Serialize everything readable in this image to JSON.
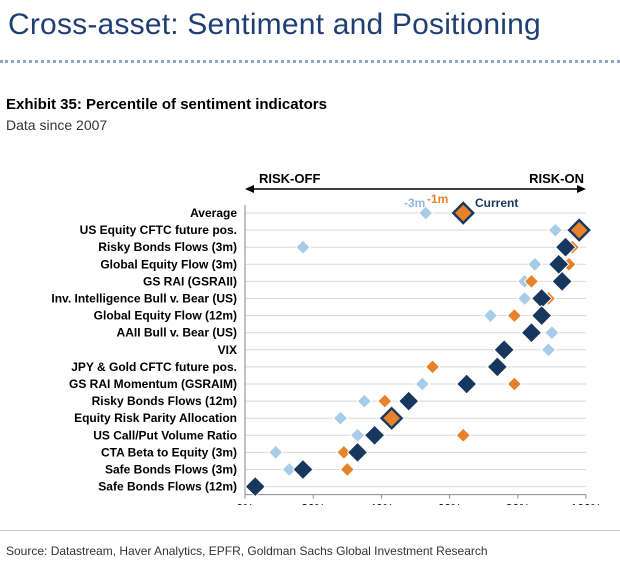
{
  "page": {
    "title": "Cross-asset: Sentiment and Positioning",
    "exhibit_title": "Exhibit 35: Percentile of sentiment indicators",
    "exhibit_subtitle": "Data since 2007",
    "source": "Source: Datastream, Haver Analytics, EPFR, Goldman Sachs Global Investment Research"
  },
  "colors": {
    "title": "#1f3f73",
    "current": "#17375e",
    "one_month": "#e8822a",
    "three_month": "#a8cbe8",
    "three_month_label": "#8fbadf"
  },
  "chart_data": {
    "type": "scatter",
    "xlim": [
      0,
      100
    ],
    "x_ticks": [
      "0%",
      "20%",
      "40%",
      "60%",
      "80%",
      "100%"
    ],
    "risk_off_label": "RISK-OFF",
    "risk_on_label": "RISK-ON",
    "categories": [
      "Average",
      "US Equity CFTC future pos.",
      "Risky Bonds Flows (3m)",
      "Global Equity Flow (3m)",
      "GS RAI (GSRAII)",
      "Inv. Intelligence Bull v. Bear (US)",
      "Global Equity Flow (12m)",
      "AAII Bull v. Bear (US)",
      "VIX",
      "JPY & Gold CFTC future pos.",
      "GS RAI Momentum (GSRAIM)",
      "Risky Bonds Flows (12m)",
      "Equity Risk Parity Allocation",
      "US Call/Put Volume Ratio",
      "CTA Beta to Equity (3m)",
      "Safe Bonds Flows (3m)",
      "Safe Bonds Flows (12m)"
    ],
    "series": [
      {
        "name": "-3m",
        "values": [
          53,
          91,
          17,
          85,
          82,
          82,
          72,
          90,
          89,
          75,
          52,
          35,
          28,
          33,
          9,
          13,
          3
        ]
      },
      {
        "name": "-1m",
        "values": [
          64,
          98,
          96,
          95,
          84,
          89,
          79,
          84,
          77,
          55,
          79,
          41,
          43,
          64,
          29,
          30,
          3
        ]
      },
      {
        "name": "Current",
        "values": [
          64,
          98,
          94,
          92,
          93,
          87,
          87,
          84,
          76,
          74,
          65,
          48,
          42,
          38,
          33,
          17,
          3
        ]
      }
    ]
  }
}
